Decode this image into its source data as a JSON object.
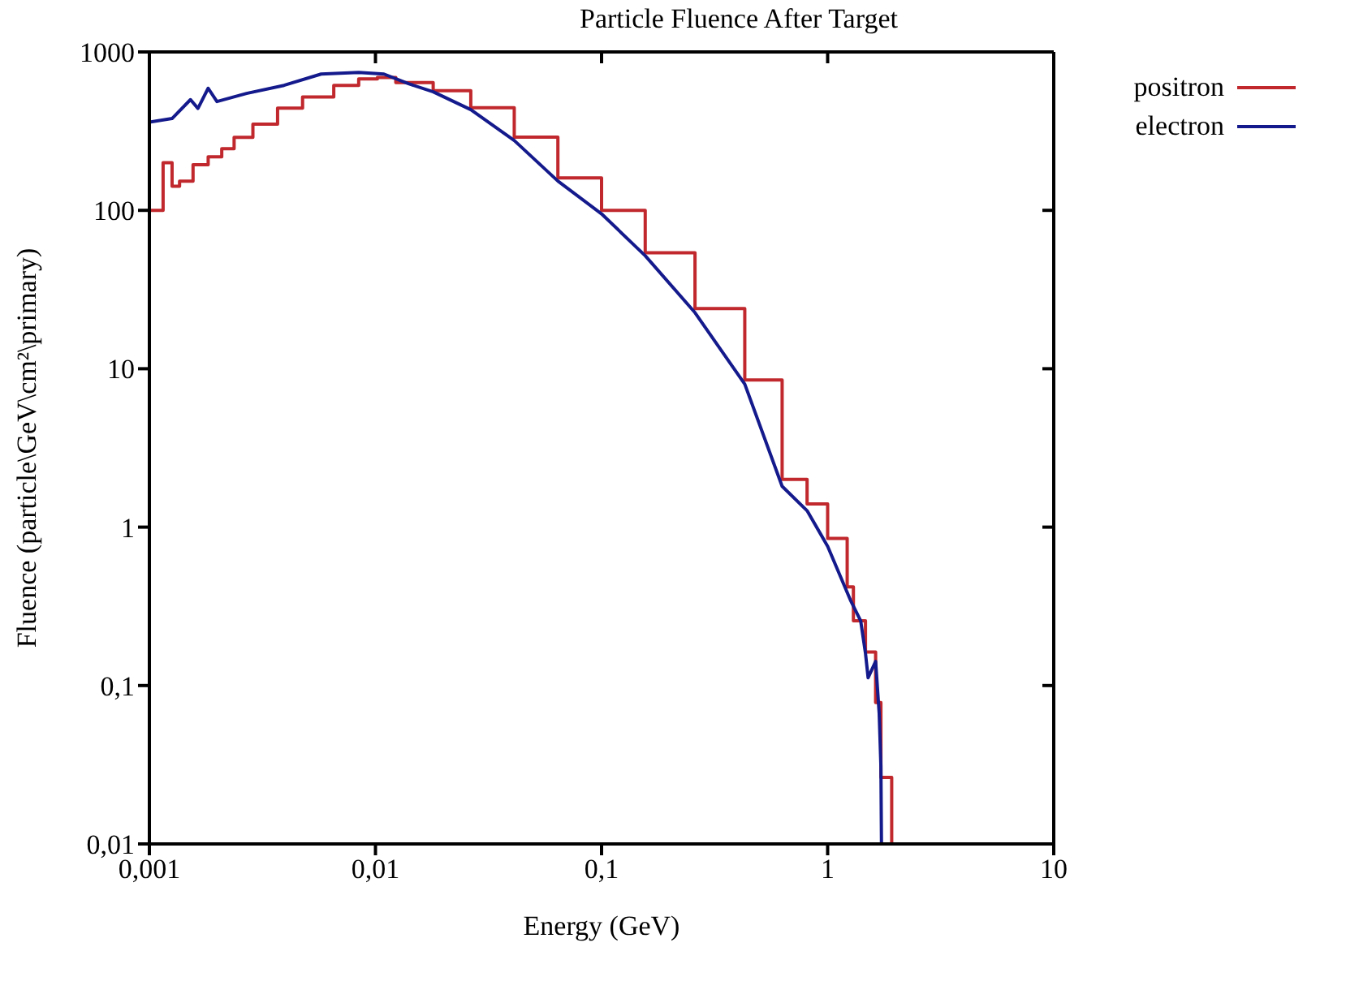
{
  "chart_data": {
    "type": "line",
    "title": "Particle Fluence After Target",
    "xlabel": "Energy (GeV)",
    "ylabel": "Fluence (particle\\GeV\\cm²\\primary)",
    "log": "xy",
    "legend": "top right",
    "marker": "none",
    "line_style": "solid",
    "xlim": [
      0.001,
      10
    ],
    "xticks": [
      {
        "value": 0.001,
        "label": "0,001"
      },
      {
        "value": 0.01,
        "label": "0,01"
      },
      {
        "value": 0.1,
        "label": "0,1"
      },
      1,
      10
    ],
    "ylim": [
      0.01,
      1000
    ],
    "yticks": [
      {
        "value": 0.01,
        "label": "0,01"
      },
      {
        "value": 0.1,
        "label": "0,1"
      },
      1,
      10,
      100,
      1000
    ],
    "series": [
      {
        "name": "positron",
        "type": "step",
        "color": "#c0282d",
        "x": [
          0.001,
          0.00115,
          0.00126,
          0.00136,
          0.00156,
          0.00182,
          0.00209,
          0.00237,
          0.00287,
          0.00369,
          0.00476,
          0.00654,
          0.00843,
          0.0102,
          0.0123,
          0.018,
          0.0264,
          0.0411,
          0.0641,
          0.1,
          0.156,
          0.259,
          0.43,
          0.629,
          0.811,
          1.0,
          1.22,
          1.3,
          1.47,
          1.63,
          1.72,
          1.92
        ],
        "values": [
          100,
          200,
          142,
          153,
          194,
          218,
          245,
          289,
          350,
          442,
          520,
          615,
          675,
          690,
          640,
          570,
          445,
          290,
          160,
          100,
          54,
          24,
          8.5,
          2.0,
          1.4,
          0.85,
          0.42,
          0.256,
          0.163,
          0.078,
          0.0263,
          0.01
        ]
      },
      {
        "name": "electron",
        "color": "#141a8c",
        "x": [
          0.001,
          0.00126,
          0.00152,
          0.00164,
          0.00182,
          0.00199,
          0.00269,
          0.00394,
          0.00575,
          0.00843,
          0.0109,
          0.014,
          0.018,
          0.0264,
          0.0411,
          0.0641,
          0.1,
          0.156,
          0.259,
          0.43,
          0.629,
          0.811,
          1.0,
          1.26,
          1.4,
          1.47,
          1.51,
          1.63,
          1.69,
          1.72,
          1.73
        ],
        "values": [
          360,
          380,
          500,
          440,
          590,
          486,
          547,
          615,
          725,
          742,
          725,
          630,
          560,
          432,
          276,
          153,
          95,
          51.7,
          22.6,
          8.0,
          1.81,
          1.27,
          0.757,
          0.347,
          0.256,
          0.16,
          0.112,
          0.142,
          0.067,
          0.031,
          0.01
        ]
      }
    ]
  }
}
